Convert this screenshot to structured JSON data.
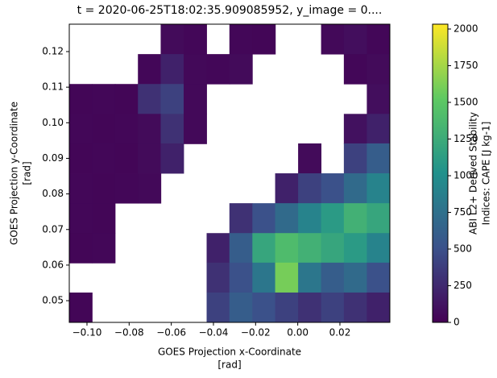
{
  "chart_data": {
    "type": "heatmap",
    "title": "t = 2020-06-25T18:02:35.909085952, y_image = 0....",
    "xlabel": [
      "GOES Projection x-Coordinate",
      "[rad]"
    ],
    "ylabel": [
      "GOES Projection y-Coordinate",
      "[rad]"
    ],
    "colorbar_label": [
      "ABI L2+ Derived Stability",
      "Indices: CAPE [J kg-1]"
    ],
    "colormap": "viridis",
    "xlim": [
      -0.1084,
      0.0437
    ],
    "ylim": [
      0.0439,
      0.1277
    ],
    "clim": [
      0,
      2033
    ],
    "xticks": [
      {
        "value": -0.1,
        "label": "−0.10"
      },
      {
        "value": -0.08,
        "label": "−0.08"
      },
      {
        "value": -0.06,
        "label": "−0.06"
      },
      {
        "value": -0.04,
        "label": "−0.04"
      },
      {
        "value": -0.02,
        "label": "−0.02"
      },
      {
        "value": 0,
        "label": "0.00"
      },
      {
        "value": 0.02,
        "label": "0.02"
      }
    ],
    "yticks": [
      {
        "value": 0.05,
        "label": "0.05"
      },
      {
        "value": 0.06,
        "label": "0.06"
      },
      {
        "value": 0.07,
        "label": "0.07"
      },
      {
        "value": 0.08,
        "label": "0.08"
      },
      {
        "value": 0.09,
        "label": "0.09"
      },
      {
        "value": 0.1,
        "label": "0.10"
      },
      {
        "value": 0.11,
        "label": "0.11"
      },
      {
        "value": 0.12,
        "label": "0.12"
      }
    ],
    "cticks": [
      0,
      250,
      500,
      750,
      1000,
      1250,
      1500,
      1750,
      2000
    ],
    "x": [
      -0.103,
      -0.0921,
      -0.0813,
      -0.0704,
      -0.0596,
      -0.0487,
      -0.0378,
      -0.027,
      -0.0161,
      -0.0053,
      0.0056,
      0.0165,
      0.0273,
      0.0382
    ],
    "y": [
      0.1235,
      0.1151,
      0.1067,
      0.0983,
      0.09,
      0.0816,
      0.0732,
      0.0648,
      0.0565,
      0.0481
    ],
    "z": [
      [
        null,
        null,
        null,
        null,
        60,
        40,
        null,
        40,
        30,
        null,
        null,
        50,
        80,
        40
      ],
      [
        null,
        null,
        null,
        40,
        200,
        50,
        40,
        60,
        null,
        null,
        null,
        null,
        40,
        60
      ],
      [
        30,
        40,
        30,
        300,
        400,
        50,
        null,
        null,
        null,
        null,
        null,
        null,
        null,
        80
      ],
      [
        40,
        30,
        40,
        60,
        300,
        50,
        null,
        null,
        null,
        null,
        null,
        null,
        100,
        200
      ],
      [
        30,
        40,
        30,
        60,
        200,
        null,
        null,
        null,
        null,
        null,
        60,
        null,
        400,
        600
      ],
      [
        40,
        30,
        40,
        50,
        null,
        null,
        null,
        null,
        null,
        200,
        400,
        500,
        700,
        900
      ],
      [
        40,
        30,
        null,
        null,
        null,
        null,
        null,
        300,
        500,
        700,
        900,
        1100,
        1300,
        1200
      ],
      [
        30,
        40,
        null,
        null,
        null,
        null,
        200,
        600,
        1200,
        1400,
        1300,
        1200,
        1100,
        900
      ],
      [
        null,
        null,
        null,
        null,
        null,
        null,
        300,
        500,
        800,
        1600,
        800,
        600,
        700,
        500
      ],
      [
        30,
        null,
        null,
        null,
        null,
        null,
        400,
        600,
        500,
        400,
        300,
        400,
        300,
        200
      ]
    ]
  }
}
